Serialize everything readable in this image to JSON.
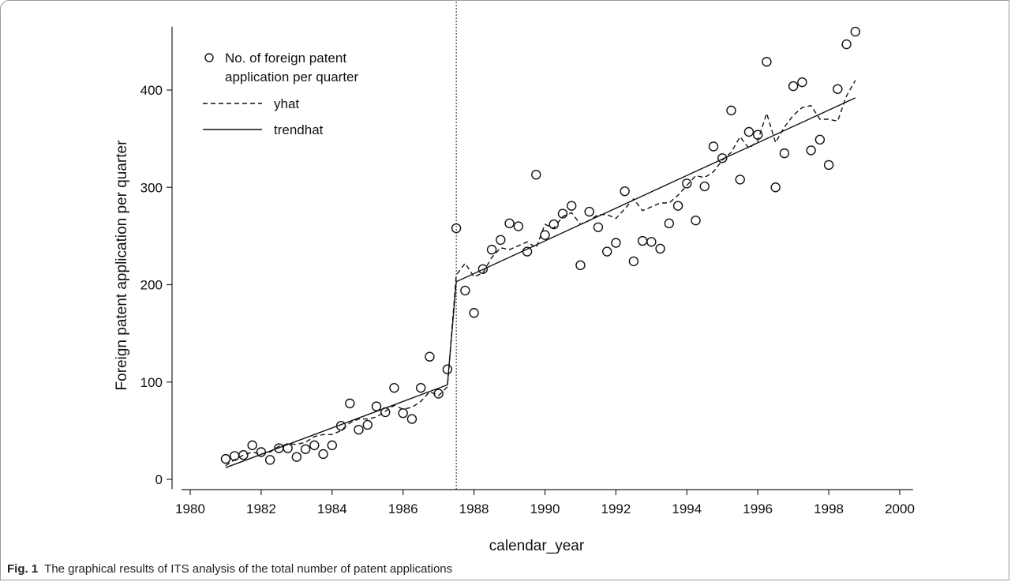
{
  "figure": {
    "label": "Fig. 1",
    "caption": "The graphical results of ITS analysis of the total number of patent applications"
  },
  "chart_data": {
    "type": "scatter",
    "xlabel": "calendar_year",
    "ylabel": "Foreign patent application per quarter",
    "xlim": [
      1979.5,
      2000.4
    ],
    "ylim": [
      -10,
      465
    ],
    "x_ticks": [
      1980,
      1982,
      1984,
      1986,
      1988,
      1990,
      1992,
      1994,
      1996,
      1998,
      2000
    ],
    "y_ticks": [
      0,
      100,
      200,
      300,
      400
    ],
    "intervention_x": 1987.5,
    "legend": {
      "position": "top-left",
      "entries": [
        "No. of foreign patent\napplication per quarter",
        "yhat",
        "trendhat"
      ]
    },
    "series": [
      {
        "name": "No. of foreign patent application per quarter",
        "style": "hollow-circle",
        "x": [
          1981.0,
          1981.25,
          1981.5,
          1981.75,
          1982.0,
          1982.25,
          1982.5,
          1982.75,
          1983.0,
          1983.25,
          1983.5,
          1983.75,
          1984.0,
          1984.25,
          1984.5,
          1984.75,
          1985.0,
          1985.25,
          1985.5,
          1985.75,
          1986.0,
          1986.25,
          1986.5,
          1986.75,
          1987.0,
          1987.25,
          1987.5,
          1987.75,
          1988.0,
          1988.25,
          1988.5,
          1988.75,
          1989.0,
          1989.25,
          1989.5,
          1989.75,
          1990.0,
          1990.25,
          1990.5,
          1990.75,
          1991.0,
          1991.25,
          1991.5,
          1991.75,
          1992.0,
          1992.25,
          1992.5,
          1992.75,
          1993.0,
          1993.25,
          1993.5,
          1993.75,
          1994.0,
          1994.25,
          1994.5,
          1994.75,
          1995.0,
          1995.25,
          1995.5,
          1995.75,
          1996.0,
          1996.25,
          1996.5,
          1996.75,
          1997.0,
          1997.25,
          1997.5,
          1997.75,
          1998.0,
          1998.25,
          1998.5,
          1998.75
        ],
        "values": [
          21,
          24,
          25,
          35,
          28,
          20,
          32,
          32,
          23,
          31,
          35,
          26,
          35,
          55,
          78,
          51,
          56,
          75,
          69,
          94,
          68,
          62,
          94,
          126,
          88,
          113,
          258,
          194,
          171,
          216,
          236,
          246,
          263,
          260,
          234,
          313,
          251,
          262,
          273,
          281,
          220,
          275,
          259,
          234,
          243,
          296,
          224,
          245,
          244,
          237,
          263,
          281,
          304,
          266,
          301,
          342,
          330,
          379,
          308,
          357,
          354,
          429,
          300,
          335,
          404,
          408,
          338,
          349,
          323,
          401,
          447,
          460
        ]
      },
      {
        "name": "yhat",
        "style": "dashed",
        "x": [
          1981.0,
          1981.25,
          1981.5,
          1981.75,
          1982.0,
          1982.25,
          1982.5,
          1982.75,
          1983.0,
          1983.25,
          1983.5,
          1983.75,
          1984.0,
          1984.25,
          1984.5,
          1984.75,
          1985.0,
          1985.25,
          1985.5,
          1985.75,
          1986.0,
          1986.25,
          1986.5,
          1986.75,
          1987.0,
          1987.25,
          1987.5,
          1987.75,
          1988.0,
          1988.25,
          1988.5,
          1988.75,
          1989.0,
          1989.25,
          1989.5,
          1989.75,
          1990.0,
          1990.25,
          1990.5,
          1990.75,
          1991.0,
          1991.25,
          1991.5,
          1991.75,
          1992.0,
          1992.25,
          1992.5,
          1992.75,
          1993.0,
          1993.25,
          1993.5,
          1993.75,
          1994.0,
          1994.25,
          1994.5,
          1994.75,
          1995.0,
          1995.25,
          1995.5,
          1995.75,
          1996.0,
          1996.25,
          1996.5,
          1996.75,
          1997.0,
          1997.25,
          1997.5,
          1997.75,
          1998.0,
          1998.25,
          1998.5,
          1998.75
        ],
        "values": [
          14,
          20,
          25,
          28,
          26,
          28,
          34,
          36,
          36,
          38,
          44,
          46,
          46,
          50,
          58,
          62,
          62,
          64,
          70,
          76,
          72,
          74,
          80,
          90,
          86,
          95,
          210,
          222,
          208,
          212,
          228,
          238,
          236,
          240,
          244,
          238,
          262,
          258,
          270,
          274,
          262,
          266,
          272,
          272,
          268,
          278,
          288,
          276,
          280,
          284,
          284,
          292,
          302,
          312,
          310,
          316,
          328,
          336,
          352,
          340,
          348,
          376,
          346,
          362,
          374,
          382,
          384,
          370,
          370,
          368,
          394,
          410
        ]
      },
      {
        "name": "trendhat",
        "style": "solid",
        "x": [
          1981.0,
          1987.25,
          1987.5,
          1998.75
        ],
        "values": [
          12,
          97,
          203,
          392
        ]
      }
    ]
  }
}
